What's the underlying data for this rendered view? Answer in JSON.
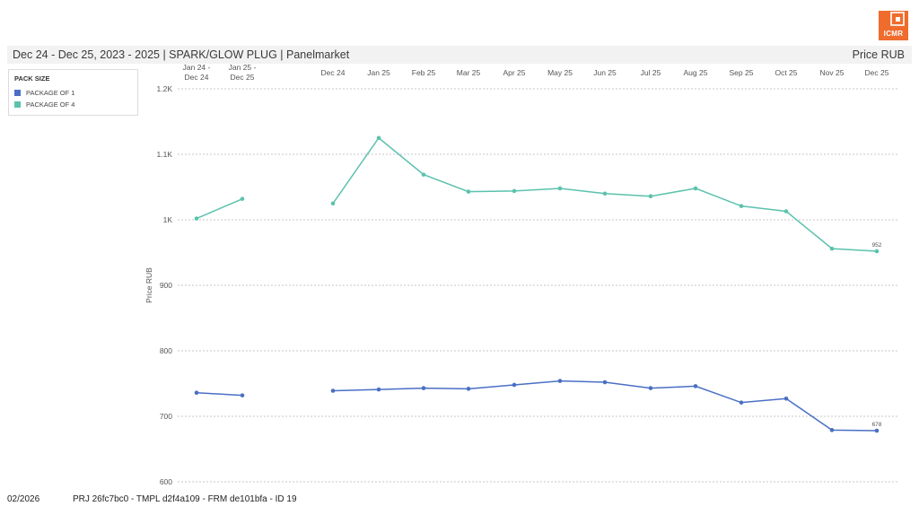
{
  "logo": {
    "text": "ICMR",
    "color": "#ef6c2d"
  },
  "header": {
    "title": "Dec 24 - Dec 25, 2023 - 2025 | SPARK/GLOW PLUG | Panelmarket",
    "unit": "Price RUB"
  },
  "legend": {
    "title": "PACK SIZE",
    "items": [
      {
        "label": "PACKAGE OF 1",
        "color": "#4a6fc4"
      },
      {
        "label": "PACKAGE OF 4",
        "color": "#5bc2ad"
      }
    ]
  },
  "footer": {
    "date": "02/2026",
    "code": "PRJ 26fc7bc0 - TMPL d2f4a109 - FRM de101bfa - ID 19"
  },
  "chart_data": {
    "type": "line",
    "ylabel": "Price RUB",
    "xlabel": "",
    "ylim": [
      600,
      1200
    ],
    "yticks": [
      600,
      700,
      800,
      900,
      1000,
      1100,
      1200
    ],
    "ytick_labels": [
      "600",
      "700",
      "800",
      "900",
      "1K",
      "1.1K",
      "1.2K"
    ],
    "grid": true,
    "legend_position": "top-left",
    "categories": [
      [
        "Jan 24 -",
        "Dec 24"
      ],
      [
        "Jan 25 -",
        "Dec 25"
      ],
      [
        "Dec 24"
      ],
      [
        "Jan 25"
      ],
      [
        "Feb 25"
      ],
      [
        "Mar 25"
      ],
      [
        "Apr 25"
      ],
      [
        "May 25"
      ],
      [
        "Jun 25"
      ],
      [
        "Jul 25"
      ],
      [
        "Aug 25"
      ],
      [
        "Sep 25"
      ],
      [
        "Oct 25"
      ],
      [
        "Nov 25"
      ],
      [
        "Dec 25"
      ]
    ],
    "segments": [
      [
        0,
        1
      ],
      [
        2,
        14
      ]
    ],
    "series": [
      {
        "name": "PACKAGE OF 1",
        "color": "#4a6fc4",
        "values": [
          736,
          732,
          739,
          741,
          743,
          742,
          748,
          754,
          752,
          743,
          746,
          721,
          727,
          679,
          678
        ],
        "end_label": "678"
      },
      {
        "name": "PACKAGE OF 4",
        "color": "#5bc2ad",
        "values": [
          1002,
          1032,
          1025,
          1125,
          1069,
          1043,
          1044,
          1048,
          1040,
          1036,
          1048,
          1021,
          1013,
          956,
          952
        ],
        "end_label": "952"
      }
    ]
  }
}
